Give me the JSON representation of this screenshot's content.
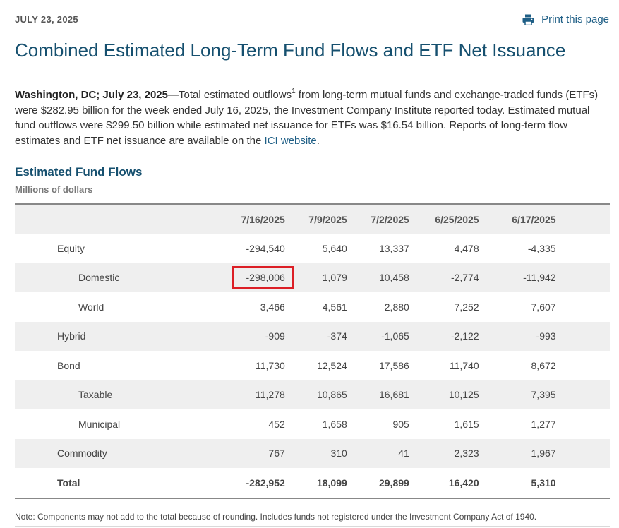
{
  "header": {
    "date": "JULY 23, 2025",
    "print_label": "Print this page",
    "print_icon": "printer-icon"
  },
  "article": {
    "title": "Combined Estimated Long-Term Fund Flows and ETF Net Issuance",
    "dateline": "Washington, DC; July 23, 2025",
    "lead_1": "—Total estimated outflows",
    "footnote_mark": "1",
    "lead_2": " from long-term mutual funds and exchange-traded funds (ETFs) were $282.95 billion for the week ended July 16, 2025, the Investment Company Institute reported today. Estimated mutual fund outflows were $299.50 billion while estimated net issuance for ETFs was $16.54 billion. Reports of long-term flow estimates and ETF net issuance are available on the ",
    "link_text": "ICI website",
    "lead_end": "."
  },
  "table": {
    "title": "Estimated Fund Flows",
    "units": "Millions of dollars",
    "columns": [
      "7/16/2025",
      "7/9/2025",
      "7/2/2025",
      "6/25/2025",
      "6/17/2025"
    ],
    "rows": [
      {
        "label": "Equity",
        "values": [
          "-294,540",
          "5,640",
          "13,337",
          "4,478",
          "-4,335"
        ]
      },
      {
        "label": "Domestic",
        "values": [
          "-298,006",
          "1,079",
          "10,458",
          "-2,774",
          "-11,942"
        ]
      },
      {
        "label": "World",
        "values": [
          "3,466",
          "4,561",
          "2,880",
          "7,252",
          "7,607"
        ]
      },
      {
        "label": "Hybrid",
        "values": [
          "-909",
          "-374",
          "-1,065",
          "-2,122",
          "-993"
        ]
      },
      {
        "label": "Bond",
        "values": [
          "11,730",
          "12,524",
          "17,586",
          "11,740",
          "8,672"
        ]
      },
      {
        "label": "Taxable",
        "values": [
          "11,278",
          "10,865",
          "16,681",
          "10,125",
          "7,395"
        ]
      },
      {
        "label": "Municipal",
        "values": [
          "452",
          "1,658",
          "905",
          "1,615",
          "1,277"
        ]
      },
      {
        "label": "Commodity",
        "values": [
          "767",
          "310",
          "41",
          "2,323",
          "1,967"
        ]
      },
      {
        "label": "Total",
        "values": [
          "-282,952",
          "18,099",
          "29,899",
          "16,420",
          "5,310"
        ]
      }
    ],
    "note": "Note: Components may not add to the total because of rounding. Includes funds not registered under the Investment Company Act of 1940."
  },
  "colors": {
    "title_blue": "#16506f",
    "link_blue": "#1f5f86",
    "highlight_red": "#dc1f26",
    "row_shade": "#efefef"
  }
}
